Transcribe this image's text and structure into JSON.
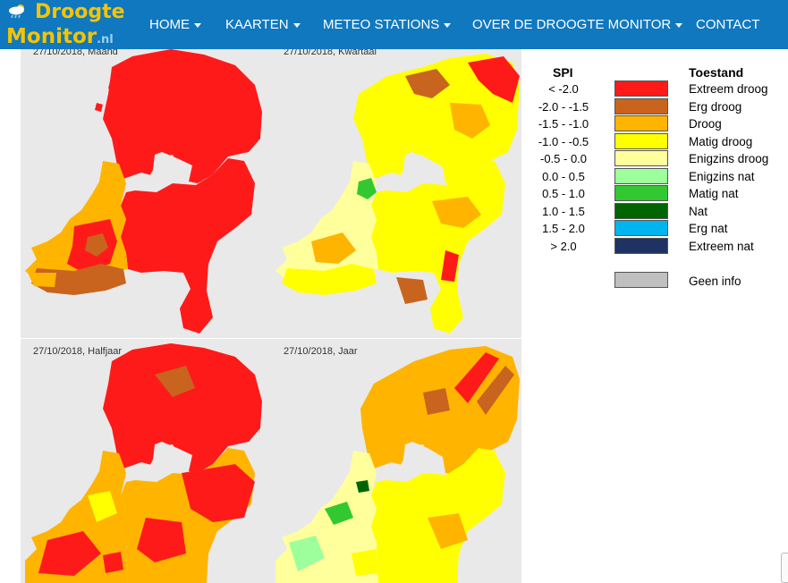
{
  "brand": {
    "line1": "Droogte",
    "line2": "Monitor",
    "suffix": ".nl",
    "icon": "weather-cloud-icon"
  },
  "nav": {
    "items": [
      {
        "label": "HOME",
        "dropdown": true
      },
      {
        "label": "KAARTEN",
        "dropdown": true
      },
      {
        "label": "METEO STATIONS",
        "dropdown": true
      },
      {
        "label": "OVER DE DROOGTE MONITOR",
        "dropdown": true
      },
      {
        "label": "CONTACT",
        "dropdown": false
      }
    ]
  },
  "maps": {
    "maand": {
      "caption": "27/10/2018, Maand"
    },
    "kwartaal": {
      "caption": "27/10/2018, Kwartaal"
    },
    "halfjaar": {
      "caption": "27/10/2018, Halfjaar"
    },
    "jaar": {
      "caption": "27/10/2018, Jaar"
    }
  },
  "legend": {
    "spi_header": "SPI",
    "status_header": "Toestand",
    "rows": [
      {
        "spi": "< -2.0",
        "label": "Extreem droog",
        "color": "#ff1a1a"
      },
      {
        "spi": "-2.0 - -1.5",
        "label": "Erg droog",
        "color": "#c8641e"
      },
      {
        "spi": "-1.5 - -1.0",
        "label": "Droog",
        "color": "#ffb400"
      },
      {
        "spi": "-1.0 - -0.5",
        "label": "Matig droog",
        "color": "#ffff00"
      },
      {
        "spi": "-0.5 - 0.0",
        "label": "Enigzins droog",
        "color": "#ffff9c"
      },
      {
        "spi": "0.0 - 0.5",
        "label": "Enigzins nat",
        "color": "#9cff9c"
      },
      {
        "spi": "0.5 - 1.0",
        "label": "Matig nat",
        "color": "#32c832"
      },
      {
        "spi": "1.0 - 1.5",
        "label": "Nat",
        "color": "#006400"
      },
      {
        "spi": "1.5 - 2.0",
        "label": "Erg nat",
        "color": "#00b4f0"
      },
      {
        "spi": "> 2.0",
        "label": "Extreem nat",
        "color": "#1e3264"
      }
    ],
    "noinfo": {
      "label": "Geen info",
      "color": "#c0c0c0"
    }
  }
}
